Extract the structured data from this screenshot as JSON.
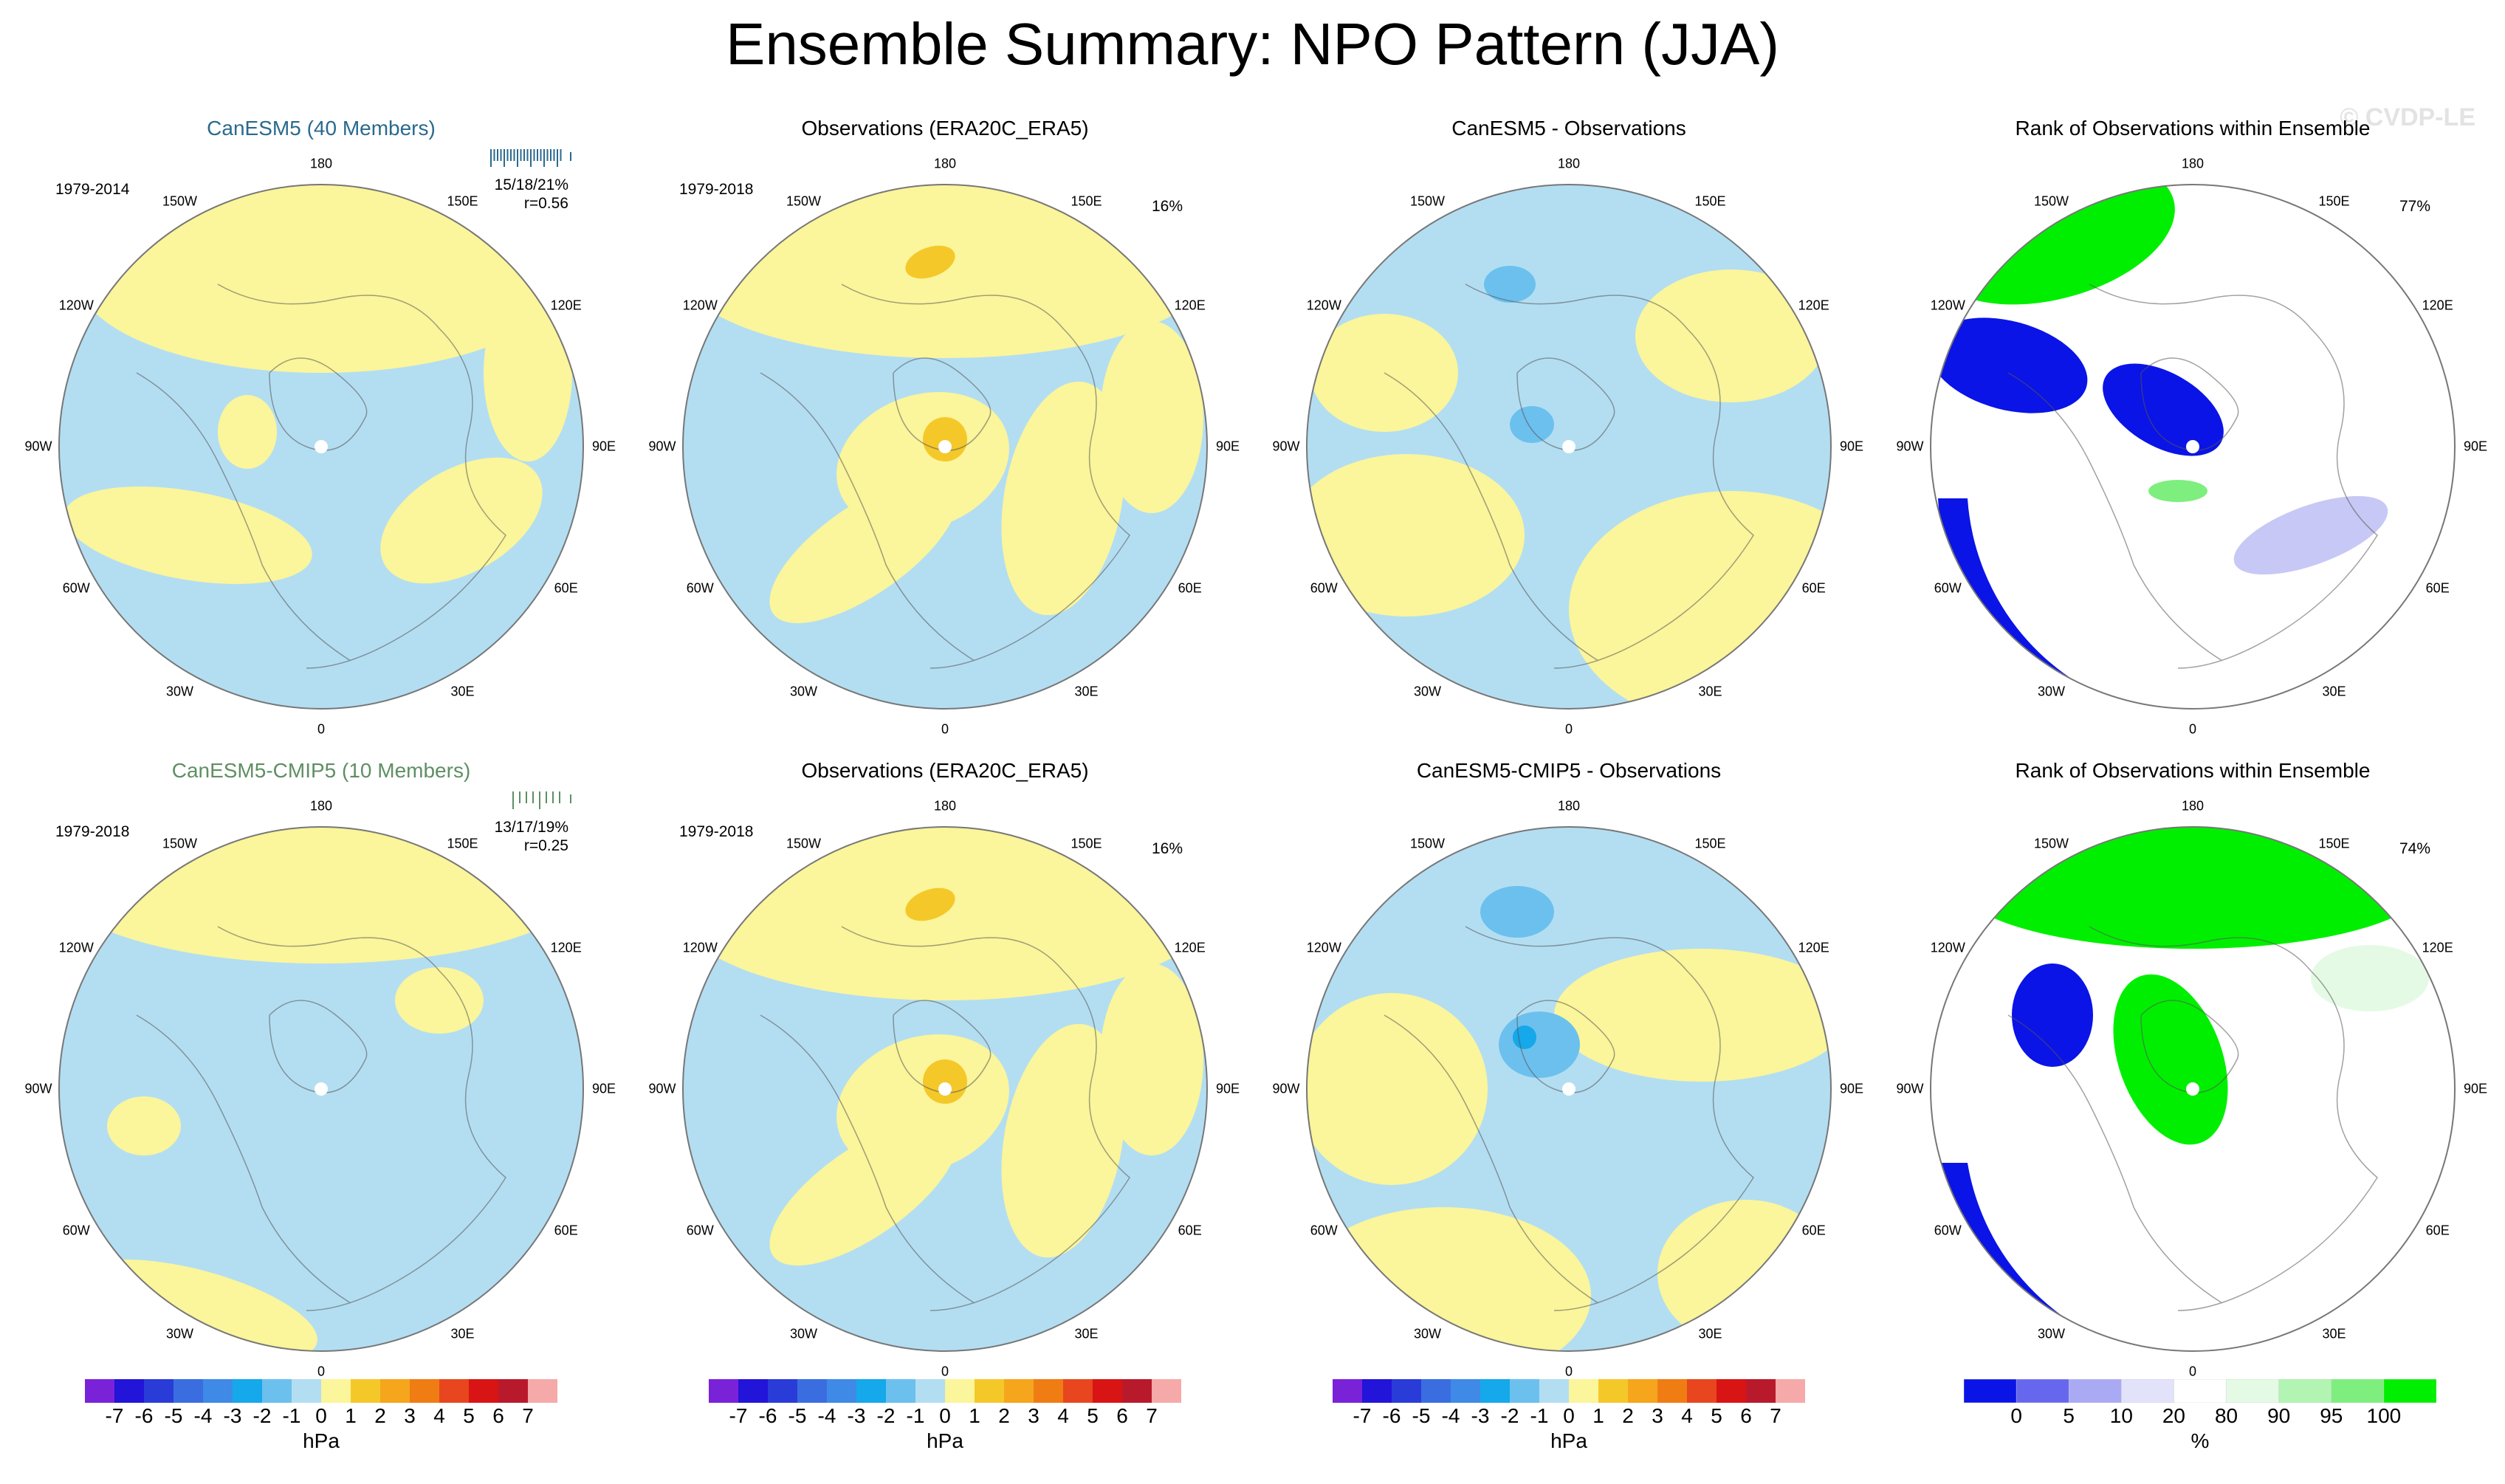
{
  "title": "Ensemble Summary: NPO Pattern (JJA)",
  "watermark": "© CVDP-LE",
  "colors": {
    "model1_title": "#2a6a8e",
    "model2_title": "#5f8f63",
    "ocean": "#b3def2",
    "land_yellow": "#fbf59b",
    "dark_yellow": "#f5c829",
    "blue_mid": "#6cc0ee",
    "blue_strong": "#15a8ea",
    "rank_green": "#00ef00",
    "rank_blue": "#0a14e6"
  },
  "lon_labels": [
    "180",
    "150E",
    "120E",
    "90E",
    "60E",
    "30E",
    "0",
    "30W",
    "60W",
    "90W",
    "120W",
    "150W"
  ],
  "rows": [
    {
      "panels": [
        {
          "title": "CanESM5 (40 Members)",
          "period": "1979-2014",
          "stats_line1": "15/18/21%",
          "stats_line2": "r=0.56",
          "kind": "model",
          "title_color": "model1_title"
        },
        {
          "title": "Observations (ERA20C_ERA5)",
          "period": "1979-2018",
          "pct": "16%",
          "kind": "obs"
        },
        {
          "title": "CanESM5 - Observations",
          "kind": "diff"
        },
        {
          "title": "Rank of Observations within Ensemble",
          "pct": "77%",
          "kind": "rank"
        }
      ]
    },
    {
      "panels": [
        {
          "title": "CanESM5-CMIP5 (10 Members)",
          "period": "1979-2018",
          "stats_line1": "13/17/19%",
          "stats_line2": "r=0.25",
          "kind": "model",
          "title_color": "model2_title"
        },
        {
          "title": "Observations (ERA20C_ERA5)",
          "period": "1979-2018",
          "pct": "16%",
          "kind": "obs"
        },
        {
          "title": "CanESM5-CMIP5 - Observations",
          "kind": "diff"
        },
        {
          "title": "Rank of Observations within Ensemble",
          "pct": "74%",
          "kind": "rank"
        }
      ]
    }
  ],
  "hpa_colorbar": {
    "unit": "hPa",
    "labels": [
      "-7",
      "-6",
      "-5",
      "-4",
      "-3",
      "-2",
      "-1",
      "0",
      "1",
      "2",
      "3",
      "4",
      "5",
      "6",
      "7"
    ],
    "colors": [
      "#7a22d8",
      "#2214d8",
      "#2a3cd8",
      "#3a6ee0",
      "#3f8ae6",
      "#15a8ea",
      "#6cc0ee",
      "#b3def2",
      "#fbf59b",
      "#f5c829",
      "#f5a61c",
      "#f07c14",
      "#e8461e",
      "#d81414",
      "#b81a2c",
      "#f6a9a9"
    ]
  },
  "rank_colorbar": {
    "unit": "%",
    "labels": [
      "0",
      "5",
      "10",
      "20",
      "80",
      "90",
      "95",
      "100"
    ],
    "colors": [
      "#0a14e6",
      "#6666ee",
      "#aaaaf4",
      "#e2e2fa",
      "#ffffff",
      "#e4fae4",
      "#b2f4b2",
      "#7eee7e",
      "#00ef00"
    ]
  }
}
